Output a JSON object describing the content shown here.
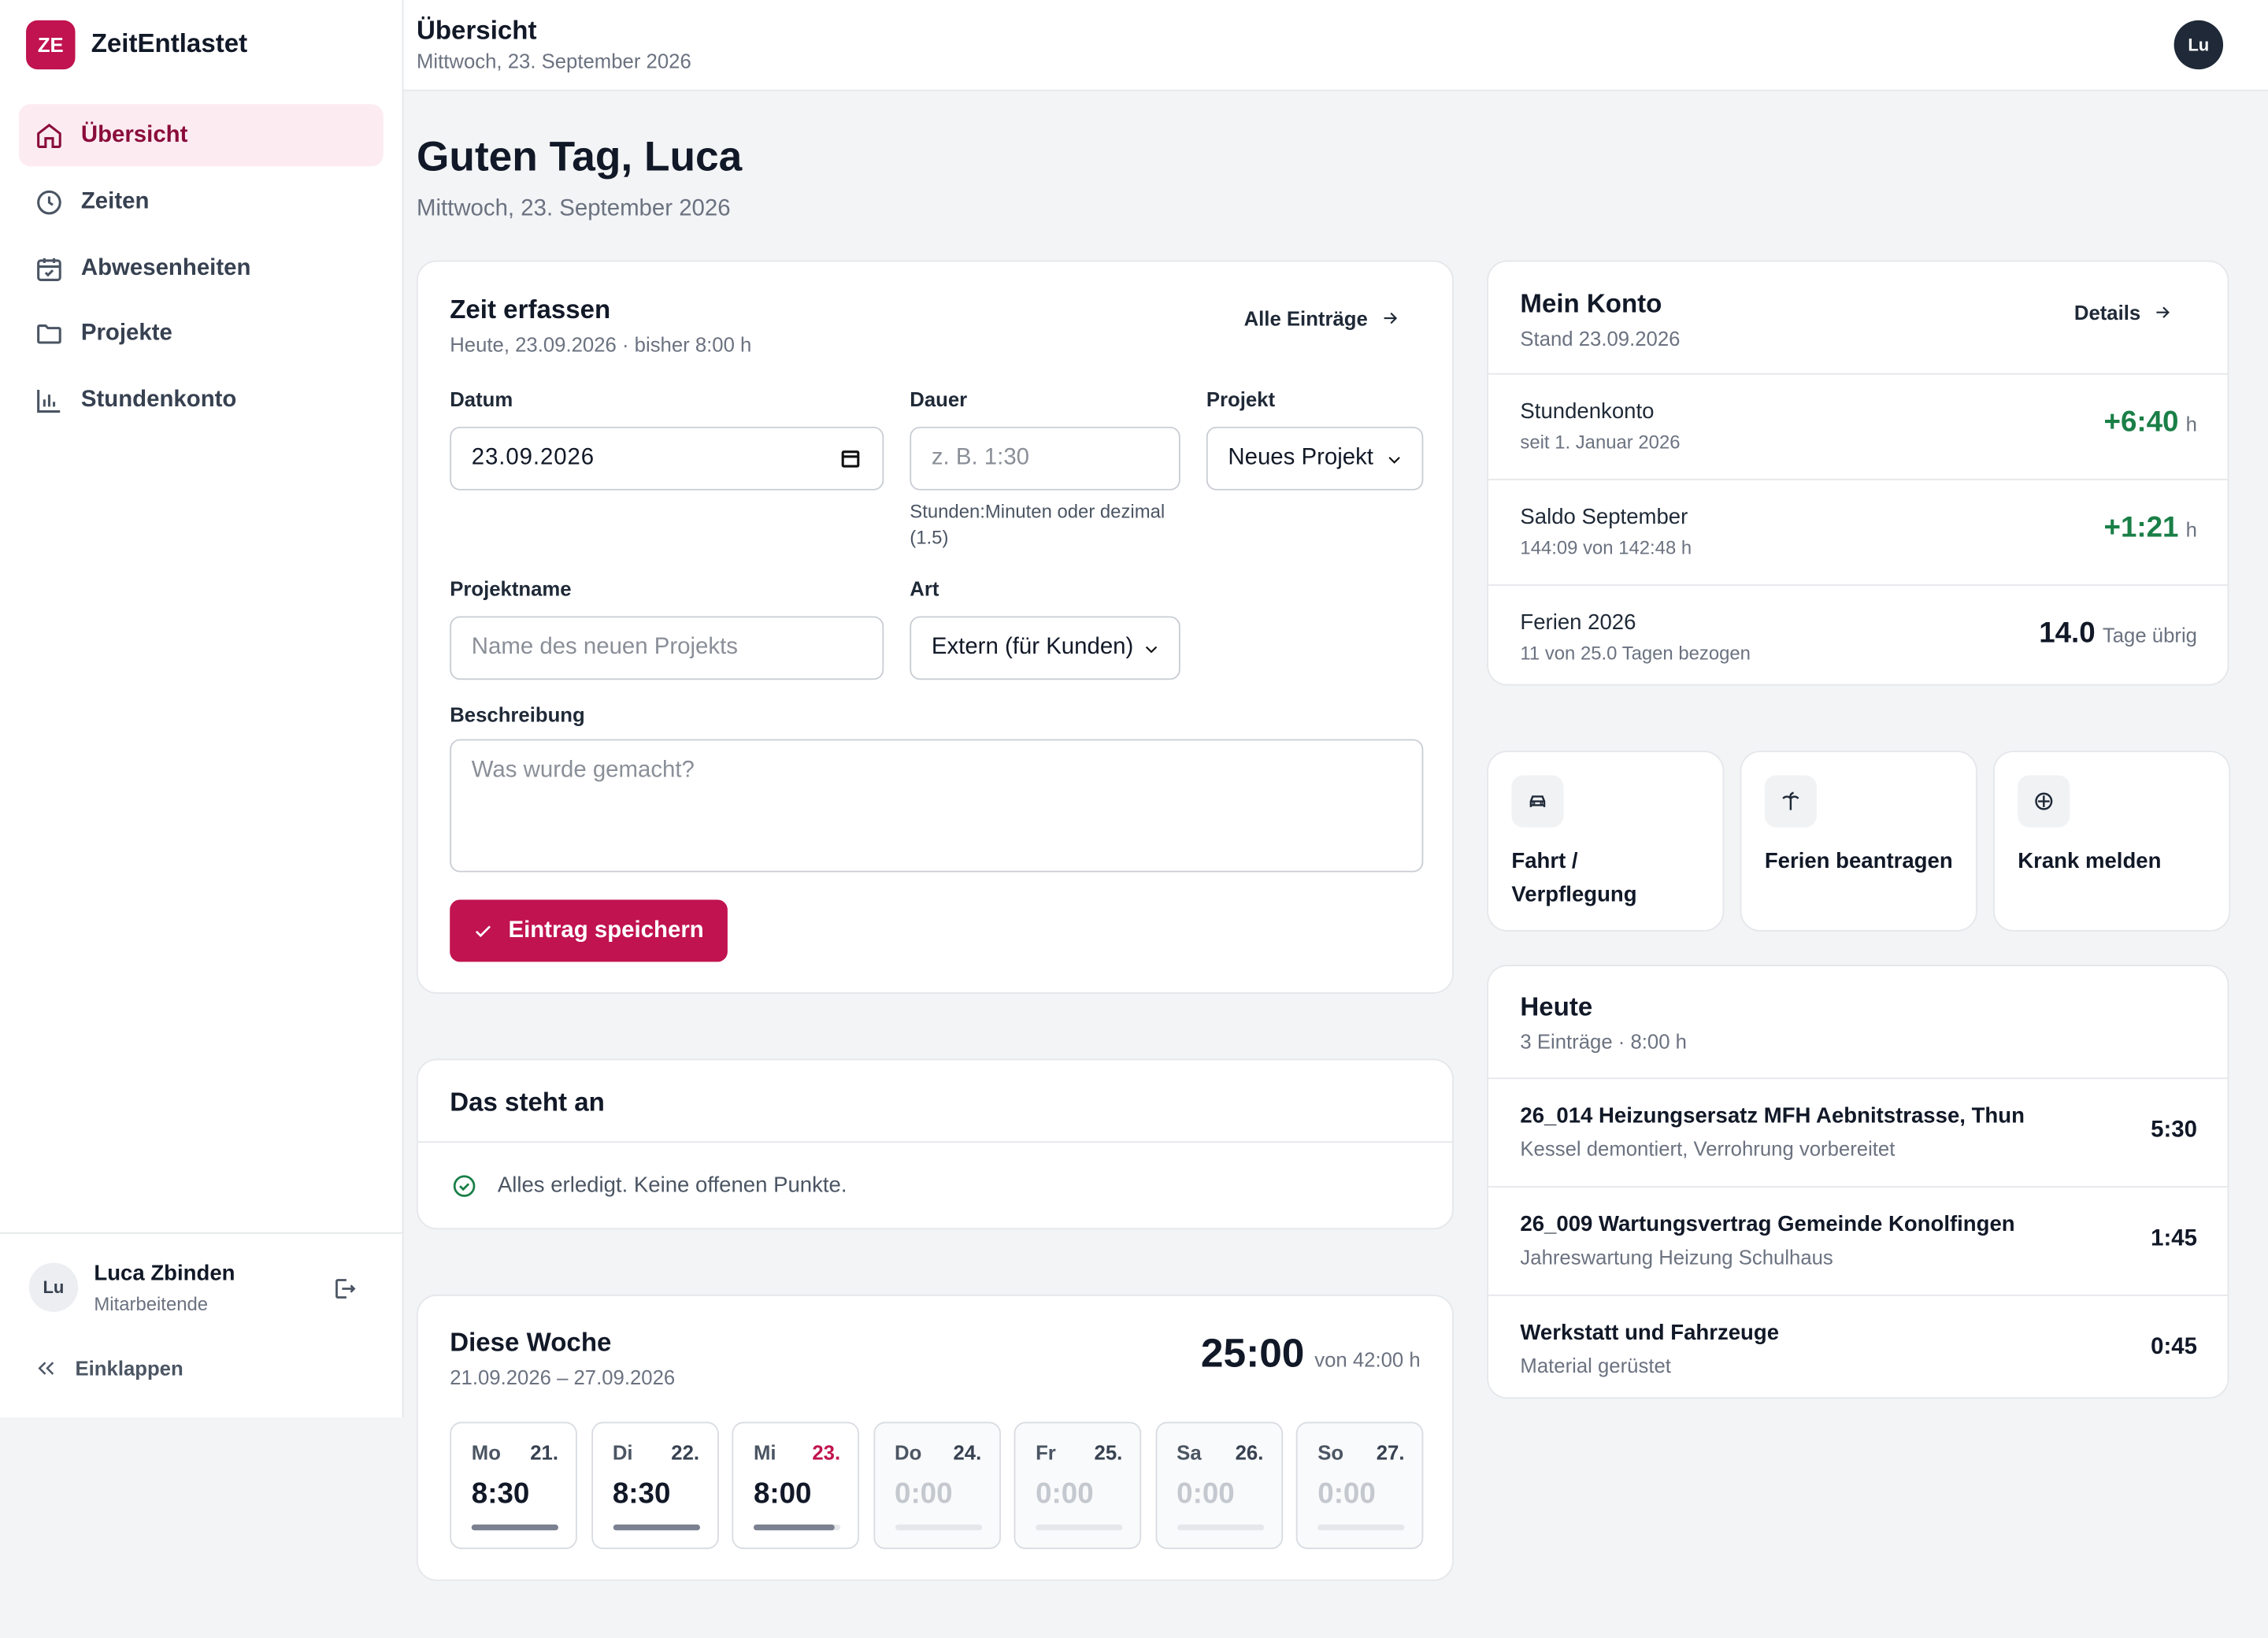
{
  "app": {
    "logo": "ZE",
    "name": "ZeitEntlastet"
  },
  "nav": [
    "Übersicht",
    "Zeiten",
    "Abwesenheiten",
    "Projekte",
    "Stundenkonto"
  ],
  "user": {
    "initials": "Lu",
    "name": "Luca Zbinden",
    "role": "Mitarbeitende"
  },
  "collapse": "Einklappen",
  "header": {
    "title": "Übersicht",
    "date": "Mittwoch, 23. September 2026",
    "avatar": "Lu"
  },
  "greeting": {
    "title": "Guten Tag, Luca",
    "date": "Mittwoch, 23. September 2026"
  },
  "time_entry": {
    "title": "Zeit erfassen",
    "subtitle": "Heute, 23.09.2026 · bisher 8:00 h",
    "link": "Alle Einträge",
    "date_label": "Datum",
    "date_value": "23.09.2026",
    "duration_label": "Dauer",
    "duration_placeholder": "z. B. 1:30",
    "duration_hint": "Stunden:Minuten oder dezimal (1.5)",
    "project_label": "Projekt",
    "project_value": "Neues Projekt",
    "project_name_label": "Projektname",
    "project_name_placeholder": "Name des neuen Projekts",
    "kind_label": "Art",
    "kind_value": "Extern (für Kunden)",
    "description_label": "Beschreibung",
    "description_placeholder": "Was wurde gemacht?",
    "save": "Eintrag speichern"
  },
  "upcoming": {
    "title": "Das steht an",
    "message": "Alles erledigt. Keine offenen Punkte."
  },
  "week": {
    "title": "Diese Woche",
    "range": "21.09.2026 – 27.09.2026",
    "total": "25:00",
    "target": "von 42:00 h",
    "days": [
      {
        "day": "Mo",
        "date": "21.",
        "hours": "8:30"
      },
      {
        "day": "Di",
        "date": "22.",
        "hours": "8:30"
      },
      {
        "day": "Mi",
        "date": "23.",
        "hours": "8:00"
      },
      {
        "day": "Do",
        "date": "24.",
        "hours": "0:00"
      },
      {
        "day": "Fr",
        "date": "25.",
        "hours": "0:00"
      },
      {
        "day": "Sa",
        "date": "26.",
        "hours": "0:00"
      },
      {
        "day": "So",
        "date": "27.",
        "hours": "0:00"
      }
    ]
  },
  "account": {
    "title": "Mein Konto",
    "subtitle": "Stand 23.09.2026",
    "link": "Details",
    "rows": [
      {
        "label": "Stundenkonto",
        "detail": "seit 1. Januar 2026",
        "value": "+6:40",
        "unit": "h"
      },
      {
        "label": "Saldo September",
        "detail": "144:09 von 142:48 h",
        "value": "+1:21",
        "unit": "h"
      },
      {
        "label": "Ferien 2026",
        "detail": "11 von 25.0 Tagen bezogen",
        "value": "14.0",
        "unit": "Tage übrig"
      }
    ]
  },
  "actions": [
    "Fahrt / Verpflegung",
    "Ferien beantragen",
    "Krank melden"
  ],
  "today": {
    "title": "Heute",
    "subtitle": "3 Einträge · 8:00 h",
    "entries": [
      {
        "project": "26_014 Heizungsersatz MFH Aebnitstrasse, Thun",
        "note": "Kessel demontiert, Verrohrung vorbereitet",
        "hours": "5:30"
      },
      {
        "project": "26_009 Wartungsvertrag Gemeinde Konolfingen",
        "note": "Jahreswartung Heizung Schulhaus",
        "hours": "1:45"
      },
      {
        "project": "Werkstatt und Fahrzeuge",
        "note": "Material gerüstet",
        "hours": "0:45"
      }
    ]
  }
}
